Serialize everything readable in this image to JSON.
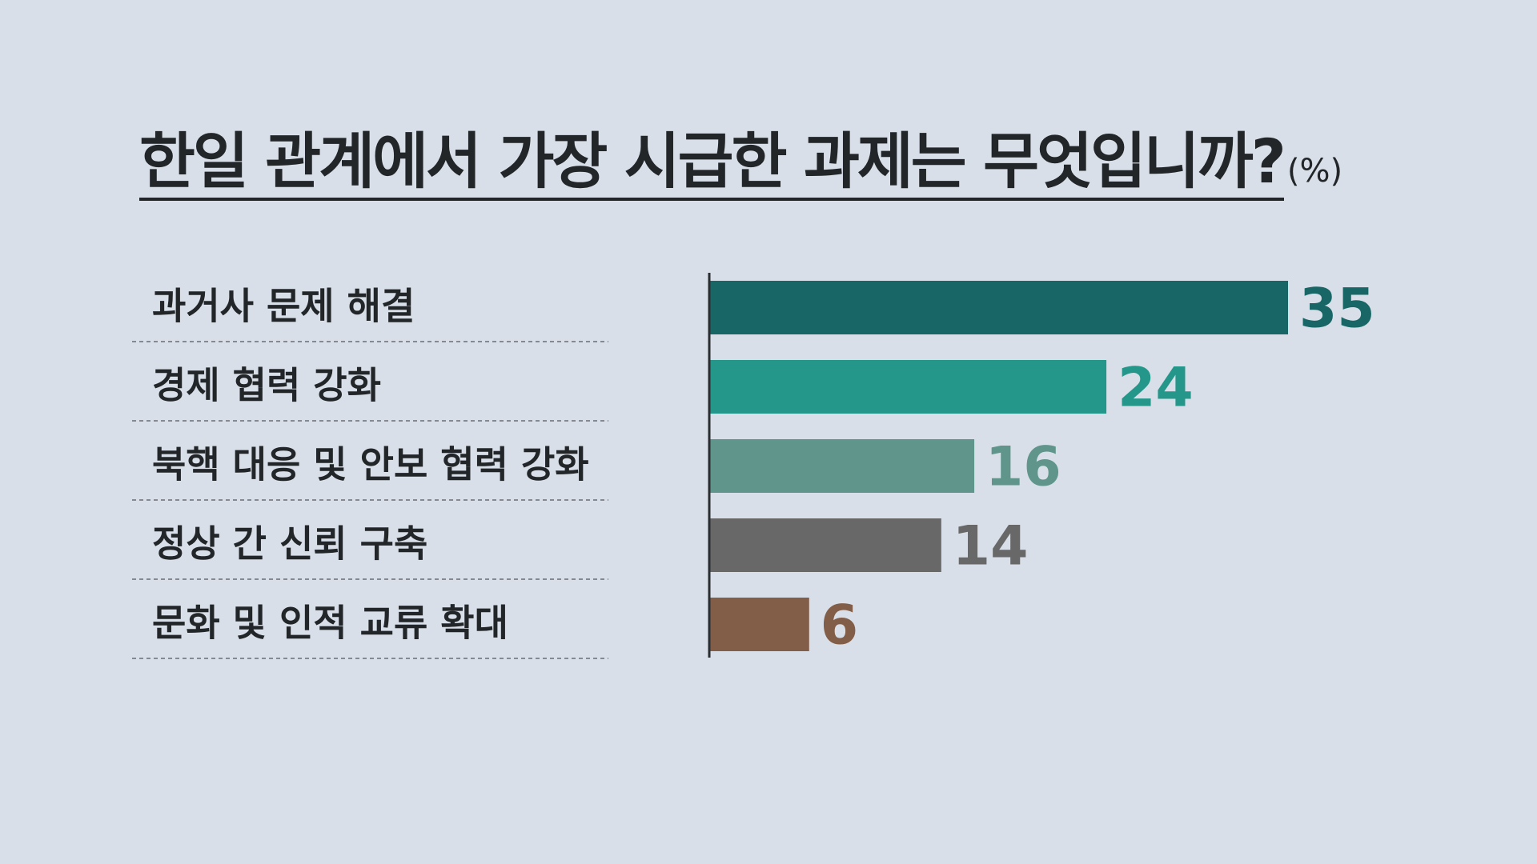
{
  "title": "한일 관계에서 가장 시급한 과제는 무엇입니까?",
  "unit": "(%)",
  "chart_data": {
    "type": "bar",
    "orientation": "horizontal",
    "title": "한일 관계에서 가장 시급한 과제는 무엇입니까?",
    "unit": "(%)",
    "categories": [
      "과거사 문제 해결",
      "경제 협력 강화",
      "북핵 대응 및 안보 협력 강화",
      "정상 간 신뢰 구축",
      "문화 및 인적 교류 확대"
    ],
    "values": [
      35,
      24,
      16,
      14,
      6
    ],
    "value_labels": [
      "35",
      "24",
      "16",
      "14",
      "6"
    ],
    "colors": [
      "#186766",
      "#24978a",
      "#5f958a",
      "#686868",
      "#825d48"
    ],
    "xlim": [
      0,
      35
    ],
    "grid": false,
    "legend": "none"
  }
}
